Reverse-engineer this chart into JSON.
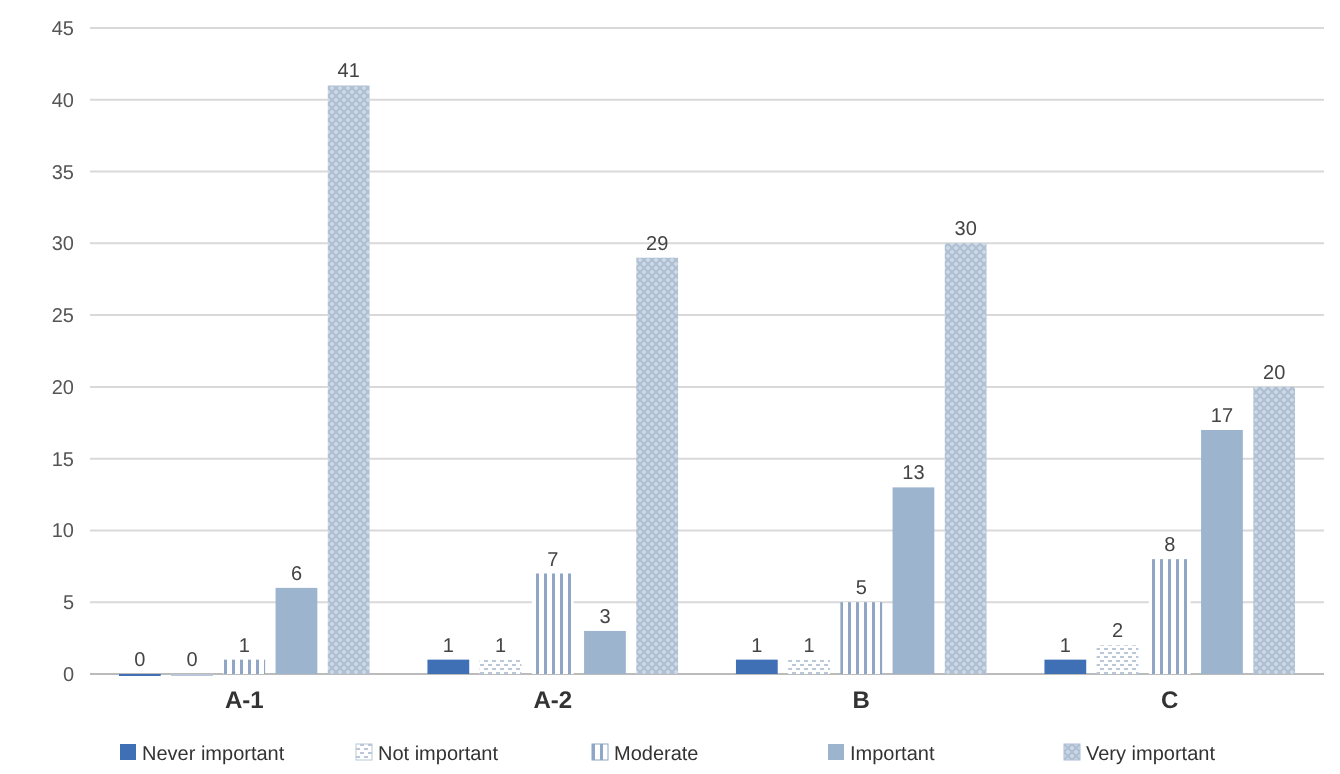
{
  "chart_data": {
    "type": "bar",
    "categories": [
      "A-1",
      "A-2",
      "B",
      "C"
    ],
    "series": [
      {
        "name": "Never important",
        "color": "#3f70b5",
        "values": [
          0,
          1,
          1,
          1
        ]
      },
      {
        "name": "Not important",
        "color": "#b9c7d8",
        "values": [
          0,
          1,
          1,
          2
        ]
      },
      {
        "name": "Moderate",
        "color": "#8fa6c4",
        "values": [
          1,
          7,
          5,
          8
        ]
      },
      {
        "name": "Important",
        "color": "#9db4cf",
        "values": [
          6,
          3,
          13,
          17
        ]
      },
      {
        "name": "Very important",
        "color": "#aebfd3",
        "values": [
          41,
          29,
          30,
          20
        ]
      }
    ],
    "ylim": [
      0,
      45
    ],
    "yticks": [
      0,
      5,
      10,
      15,
      20,
      25,
      30,
      35,
      40,
      45
    ],
    "grid": "y",
    "legend": "bottom",
    "data_labels": true
  }
}
